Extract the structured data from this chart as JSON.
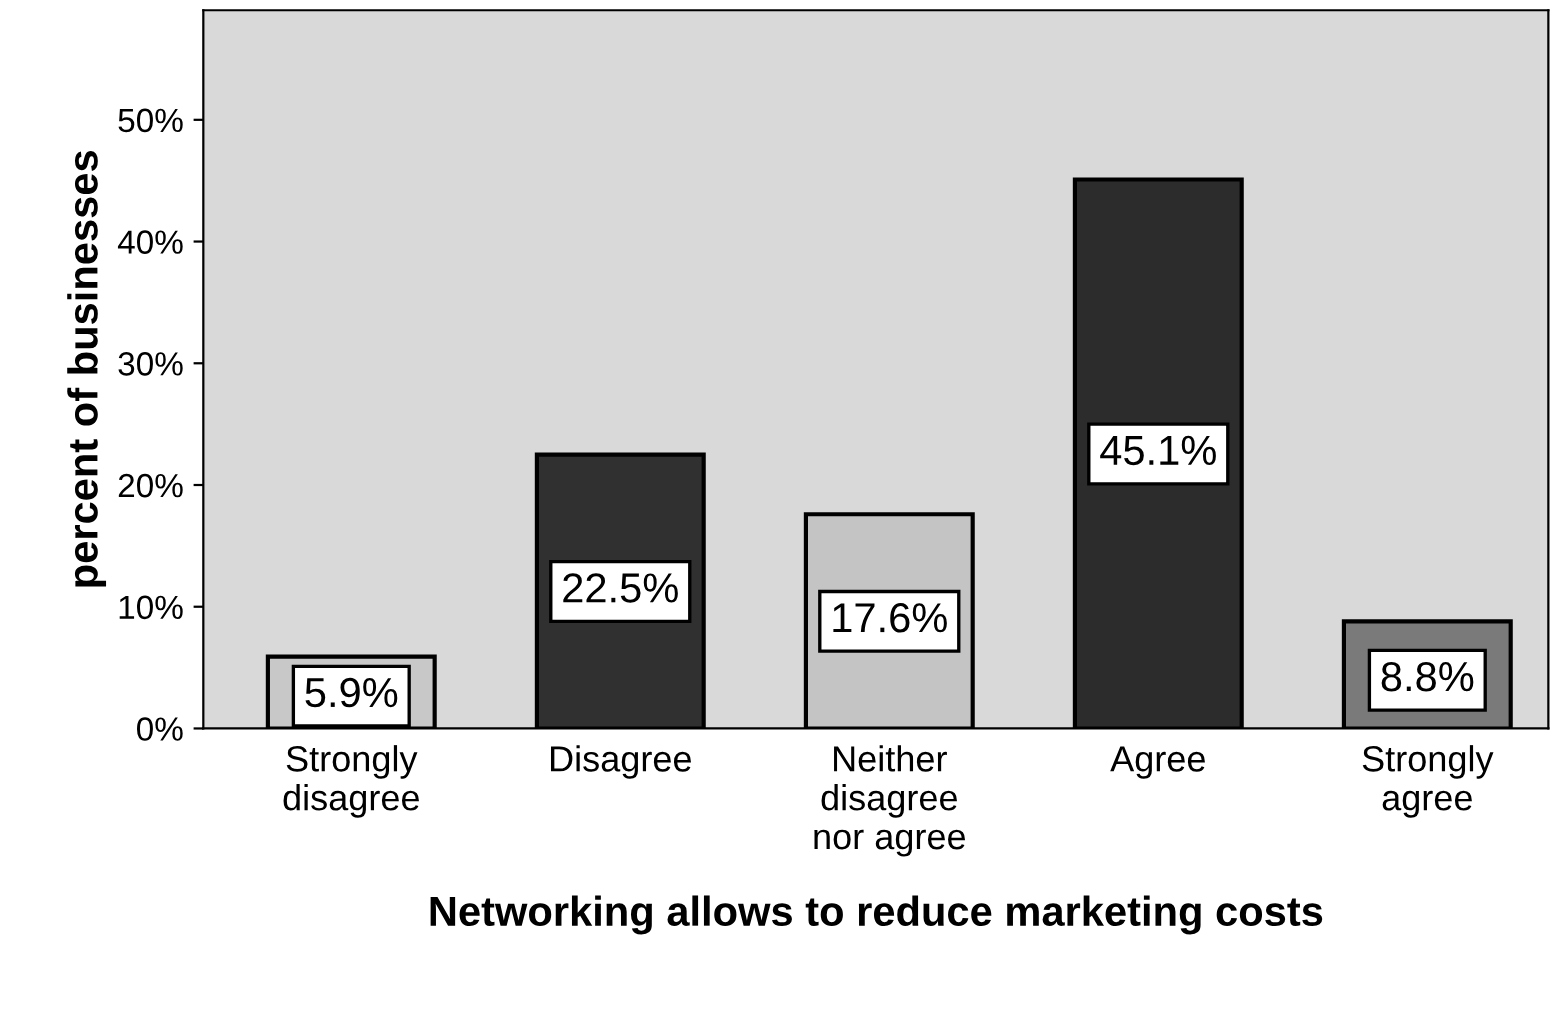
{
  "chart_data": {
    "type": "bar",
    "xlabel": "Networking allows to reduce marketing costs",
    "ylabel": "percent of businesses",
    "categories": [
      "Strongly\ndisagree",
      "Disagree",
      "Neither\ndisagree\nnor agree",
      "Agree",
      "Strongly\nagree"
    ],
    "values": [
      5.9,
      22.5,
      17.6,
      45.1,
      8.8
    ],
    "colors": [
      "#c8c8c8",
      "#303030",
      "#c4c4c4",
      "#2c2c2c",
      "#7a7a7a"
    ],
    "value_labels": [
      "5.9%",
      "22.5%",
      "17.6%",
      "45.1%",
      "8.8%"
    ],
    "ylim": [
      0,
      59
    ],
    "yticks": [
      {
        "value": 0,
        "label": "0%"
      },
      {
        "value": 10,
        "label": "10%"
      },
      {
        "value": 20,
        "label": "20%"
      },
      {
        "value": 30,
        "label": "30%"
      },
      {
        "value": 40,
        "label": "40%"
      },
      {
        "value": 50,
        "label": "50%"
      }
    ],
    "grid": false
  }
}
